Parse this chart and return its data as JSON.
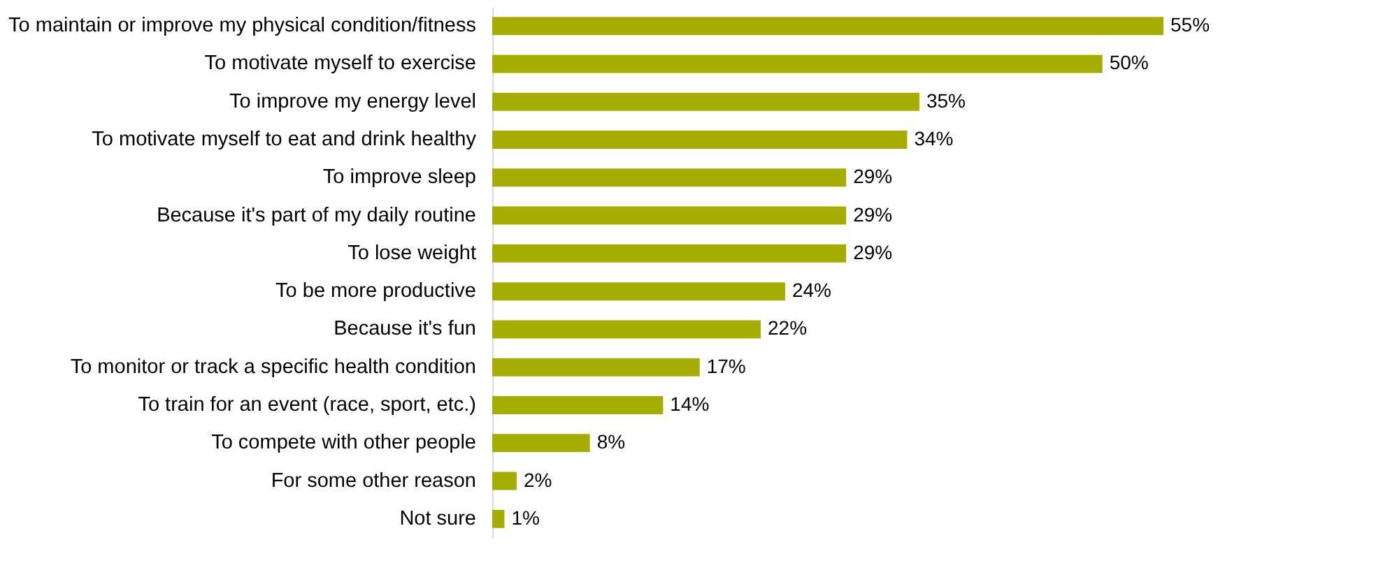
{
  "chart_data": {
    "type": "bar",
    "orientation": "horizontal",
    "categories": [
      "To maintain or improve my physical condition/fitness",
      "To motivate myself to exercise",
      "To improve my energy level",
      "To motivate myself to eat and drink healthy",
      "To improve sleep",
      "Because it's part of my daily routine",
      "To lose weight",
      "To be more productive",
      "Because it's fun",
      "To monitor or track a specific health condition",
      "To train for an event (race, sport, etc.)",
      "To compete with other people",
      "For some other reason",
      "Not sure"
    ],
    "values": [
      55,
      50,
      35,
      34,
      29,
      29,
      29,
      24,
      22,
      17,
      14,
      8,
      2,
      1
    ],
    "value_labels": [
      "55%",
      "50%",
      "35%",
      "34%",
      "29%",
      "29%",
      "29%",
      "24%",
      "22%",
      "17%",
      "14%",
      "8%",
      "2%",
      "1%"
    ],
    "color": "#a5ad00",
    "grid": false,
    "tick_labels": "y"
  }
}
